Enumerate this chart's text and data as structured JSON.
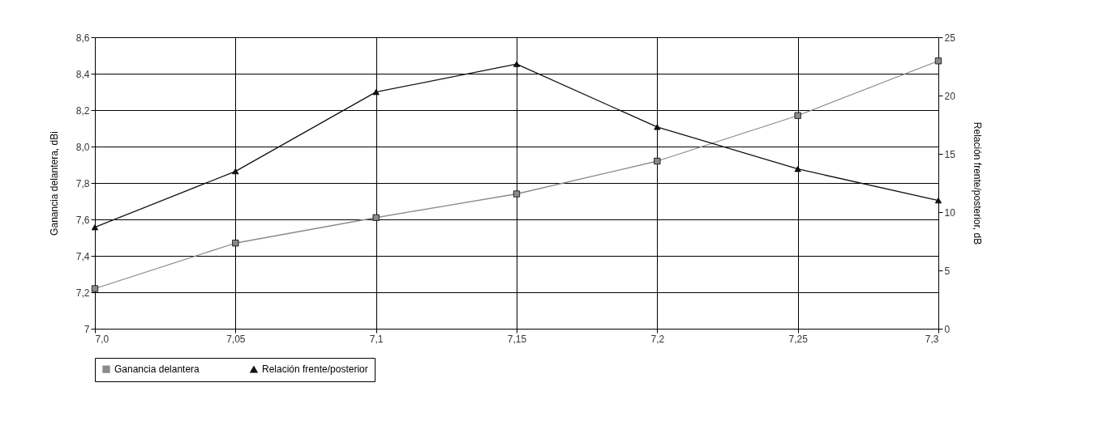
{
  "chart_data": {
    "type": "line",
    "xlabel": null,
    "ylabel": "Ganancia delantera, dBi",
    "y2label": "Relación frente/posterior, dB",
    "x": [
      7.0,
      7.05,
      7.1,
      7.15,
      7.2,
      7.25,
      7.3
    ],
    "xlim": [
      7.0,
      7.3
    ],
    "xticks": [
      {
        "value": 7.0,
        "label": "7,0"
      },
      {
        "value": 7.05,
        "label": "7,05"
      },
      {
        "value": 7.1,
        "label": "7,1"
      },
      {
        "value": 7.15,
        "label": "7,15"
      },
      {
        "value": 7.2,
        "label": "7,2"
      },
      {
        "value": 7.25,
        "label": "7,25"
      },
      {
        "value": 7.3,
        "label": "7,3"
      }
    ],
    "ylim": [
      7,
      8.6
    ],
    "yticks": [
      7,
      {
        "value": 7.2,
        "label": "7,2"
      },
      {
        "value": 7.4,
        "label": "7,4"
      },
      {
        "value": 7.6,
        "label": "7,6"
      },
      {
        "value": 7.8,
        "label": "7,8"
      },
      {
        "value": 8.0,
        "label": "8,0"
      },
      {
        "value": 8.2,
        "label": "8,2"
      },
      {
        "value": 8.4,
        "label": "8,4"
      },
      {
        "value": 8.6,
        "label": "8,6"
      }
    ],
    "y2lim": [
      0,
      25
    ],
    "y2ticks": [
      0,
      5,
      10,
      15,
      20,
      25
    ],
    "series": [
      {
        "name": "Ganancia delantera",
        "color": "#8a8a8a",
        "marker": "square",
        "values": [
          7.22,
          7.47,
          7.61,
          7.74,
          7.92,
          8.17,
          8.47
        ]
      },
      {
        "name": "Relación frente/posterior",
        "color": "#111111",
        "marker": "triangle",
        "axis": "y2",
        "values": [
          8.7,
          13.5,
          20.3,
          22.7,
          17.3,
          13.7,
          11.0
        ]
      }
    ],
    "grid": true,
    "legend": "bottom"
  }
}
